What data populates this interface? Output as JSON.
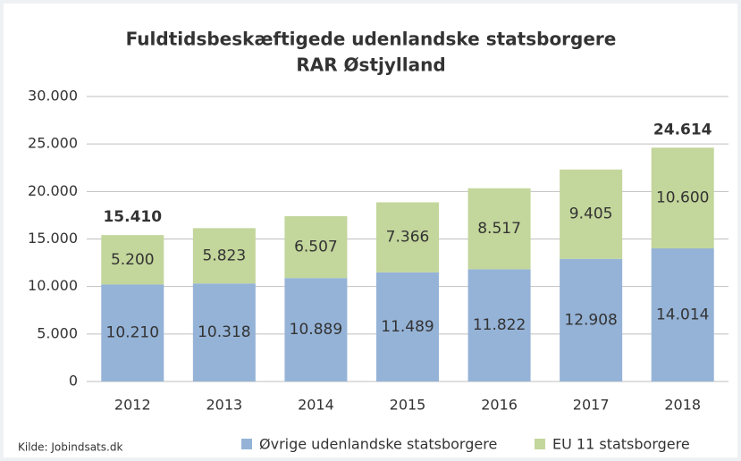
{
  "chart_data": {
    "type": "stacked_bar",
    "title": "Fuldtidsbeskæftigede udenlandske statsborgere",
    "subtitle": "RAR Østjylland",
    "categories": [
      "2012",
      "2013",
      "2014",
      "2015",
      "2016",
      "2017",
      "2018"
    ],
    "series": [
      {
        "name": "Øvrige udenlandske statsborgere",
        "color": "#95b3d7",
        "values": [
          10210,
          10318,
          10889,
          11489,
          11822,
          12908,
          14014
        ],
        "value_labels": [
          "10.210",
          "10.318",
          "10.889",
          "11.489",
          "11.822",
          "12.908",
          "14.014"
        ]
      },
      {
        "name": "EU 11 statsborgere",
        "color": "#c3d69b",
        "values": [
          5200,
          5823,
          6507,
          7366,
          8517,
          9405,
          10600
        ],
        "value_labels": [
          "5.200",
          "5.823",
          "6.507",
          "7.366",
          "8.517",
          "9.405",
          "10.600"
        ]
      }
    ],
    "annotations": [
      {
        "x": "2012",
        "value": 15410,
        "label": "15.410"
      },
      {
        "x": "2018",
        "value": 24614,
        "label": "24.614"
      }
    ],
    "ylim": [
      0,
      30000
    ],
    "yticks": [
      0,
      {
        "value": 5000,
        "label": "5.000"
      },
      {
        "value": 10000,
        "label": "10.000"
      },
      {
        "value": 15000,
        "label": "15.000"
      },
      {
        "value": 20000,
        "label": "20.000"
      },
      {
        "value": 25000,
        "label": "25.000"
      },
      {
        "value": 30000,
        "label": "30.000"
      }
    ],
    "grid": true,
    "legend": "bottom",
    "source": "Kilde: Jobindsats.dk"
  }
}
